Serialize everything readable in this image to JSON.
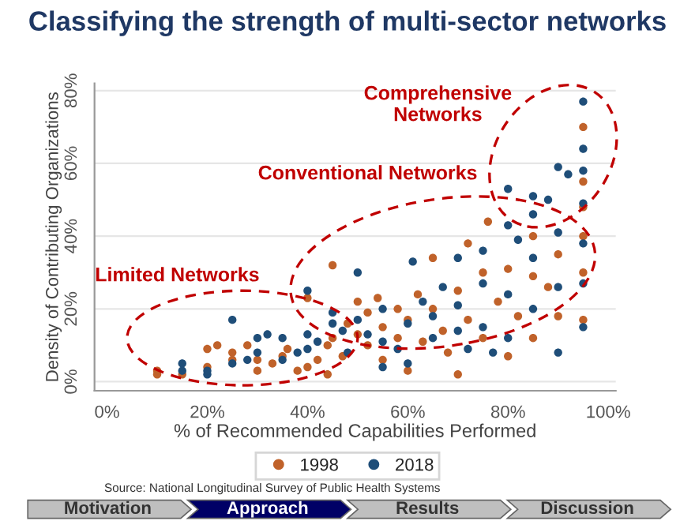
{
  "chart_data": {
    "type": "scatter",
    "title": "Classifying the strength of multi-sector networks",
    "xlabel": "% of Recommended Capabilities Performed",
    "ylabel": "Density of Contributing Organizations",
    "xlim": [
      -2.5,
      101.5
    ],
    "ylim": [
      -2.5,
      82
    ],
    "xticks": [
      {
        "value": 0,
        "label": "0%"
      },
      {
        "value": 20,
        "label": "20%"
      },
      {
        "value": 40,
        "label": "40%"
      },
      {
        "value": 60,
        "label": "60%"
      },
      {
        "value": 80,
        "label": "80%"
      },
      {
        "value": 100,
        "label": "100%"
      }
    ],
    "yticks": [
      {
        "value": 0,
        "label": "0%"
      },
      {
        "value": 20,
        "label": "20%"
      },
      {
        "value": 40,
        "label": "40%"
      },
      {
        "value": 60,
        "label": "60%"
      },
      {
        "value": 80,
        "label": "80%"
      }
    ],
    "grid": "y",
    "legend": "bottom",
    "marker": "circle",
    "series": [
      {
        "name": "1998",
        "color": "#c0622a",
        "x": [
          10,
          10,
          15,
          20,
          20,
          22,
          25,
          25,
          28,
          30,
          30,
          33,
          35,
          36,
          38,
          40,
          40,
          42,
          44,
          44,
          45,
          45,
          47,
          48,
          50,
          50,
          52,
          52,
          54,
          55,
          55,
          58,
          58,
          60,
          60,
          62,
          63,
          65,
          65,
          67,
          68,
          70,
          70,
          72,
          72,
          75,
          75,
          76,
          78,
          80,
          80,
          82,
          85,
          85,
          85,
          88,
          90,
          90,
          95,
          95,
          95,
          95,
          95,
          95
        ],
        "values": [
          2,
          3,
          2,
          4,
          9,
          10,
          6,
          8,
          10,
          3,
          6,
          5,
          7,
          9,
          3,
          4,
          23,
          6,
          2,
          10,
          32,
          12,
          7,
          16,
          13,
          22,
          19,
          10,
          23,
          15,
          6,
          20,
          12,
          3,
          17,
          24,
          11,
          34,
          20,
          14,
          8,
          2,
          25,
          38,
          17,
          30,
          12,
          44,
          22,
          31,
          7,
          18,
          40,
          29,
          12,
          26,
          35,
          18,
          70,
          55,
          48,
          40,
          30,
          17
        ]
      },
      {
        "name": "2018",
        "color": "#1f4e79",
        "x": [
          15,
          15,
          20,
          20,
          25,
          25,
          28,
          30,
          30,
          32,
          35,
          35,
          38,
          40,
          40,
          40,
          42,
          45,
          45,
          47,
          48,
          50,
          50,
          52,
          55,
          55,
          55,
          58,
          60,
          60,
          61,
          63,
          65,
          65,
          67,
          70,
          70,
          70,
          72,
          75,
          75,
          75,
          77,
          80,
          80,
          80,
          80,
          82,
          85,
          85,
          85,
          85,
          88,
          90,
          90,
          90,
          90,
          92,
          95,
          95,
          95,
          95,
          95,
          95,
          95
        ],
        "values": [
          3,
          5,
          2,
          3,
          5,
          17,
          6,
          8,
          12,
          13,
          6,
          12,
          8,
          25,
          13,
          9,
          11,
          16,
          19,
          14,
          8,
          30,
          17,
          13,
          4,
          11,
          20,
          9,
          16,
          5,
          33,
          22,
          18,
          12,
          26,
          14,
          21,
          34,
          9,
          36,
          27,
          15,
          8,
          53,
          43,
          24,
          12,
          39,
          51,
          46,
          34,
          20,
          50,
          59,
          41,
          26,
          8,
          57,
          77,
          64,
          58,
          49,
          38,
          27,
          15
        ]
      }
    ],
    "annotations": [
      "Comprehensive\nNetworks",
      "Conventional Networks",
      "Limited Networks",
      "Source: National Longitudinal Survey of Public Health Systems",
      "Motivation",
      "Approach",
      "Results",
      "Discussion"
    ]
  }
}
